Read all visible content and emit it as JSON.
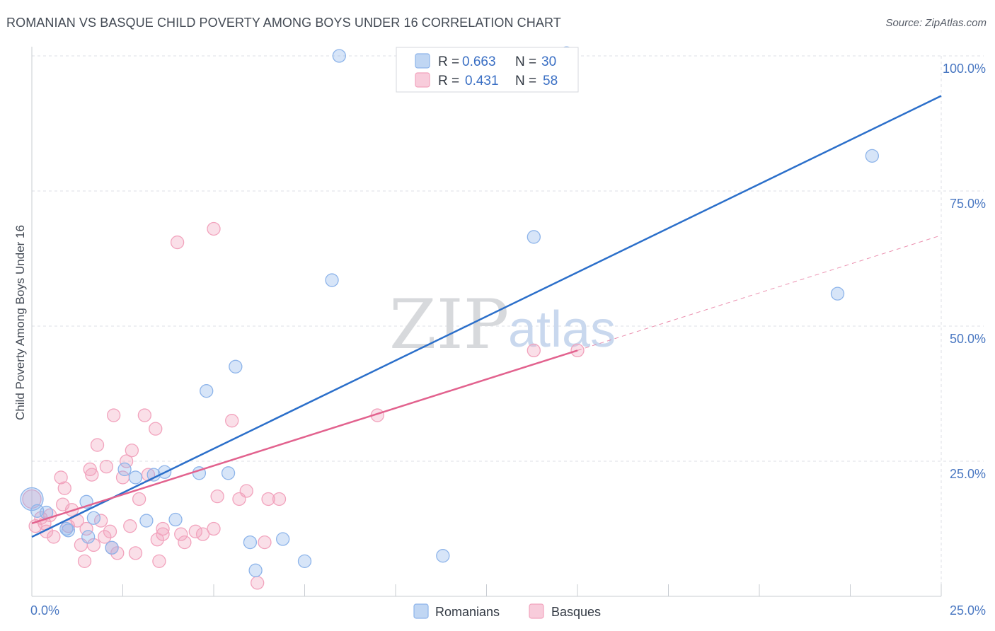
{
  "header": {
    "title": "ROMANIAN VS BASQUE CHILD POVERTY AMONG BOYS UNDER 16 CORRELATION CHART",
    "source": "Source: ZipAtlas.com"
  },
  "watermark": {
    "zip": "ZIP",
    "atlas": "atlas"
  },
  "colors": {
    "romanians": "#8db4ea",
    "romanians_line": "#2b6fca",
    "basques": "#f2a3bd",
    "basques_line": "#e2628e",
    "tick_label": "#4a78c2",
    "grid": "#dcdfe4"
  },
  "legend": {
    "r_label": "R =",
    "n_label": "N =",
    "romanians": {
      "r": "0.663",
      "n": "30"
    },
    "basques": {
      "r": "0.431",
      "n": "58"
    }
  },
  "chart_data": {
    "type": "scatter",
    "title": "ROMANIAN VS BASQUE CHILD POVERTY AMONG BOYS UNDER 16 CORRELATION CHART",
    "xlabel": "",
    "ylabel": "Child Poverty Among Boys Under 16",
    "xlim": [
      0,
      25
    ],
    "ylim": [
      0,
      100
    ],
    "x_tick_labels": [
      "0.0%",
      "25.0%"
    ],
    "y_ticks": [
      25,
      50,
      75,
      100
    ],
    "y_tick_labels": [
      "25.0%",
      "50.0%",
      "75.0%",
      "100.0%"
    ],
    "legend_position": "top-center",
    "series": [
      {
        "name": "Romanians",
        "r": 0.663,
        "n": 30,
        "trend": {
          "x": [
            0,
            25
          ],
          "y": [
            11.0,
            92.6
          ]
        },
        "points": [
          [
            0.0,
            18.0
          ],
          [
            0.4,
            15.5
          ],
          [
            0.95,
            12.5
          ],
          [
            1.5,
            17.5
          ],
          [
            1.7,
            14.5
          ],
          [
            1.55,
            11.0
          ],
          [
            2.2,
            9.0
          ],
          [
            2.55,
            23.5
          ],
          [
            2.85,
            22.0
          ],
          [
            3.15,
            14.0
          ],
          [
            3.35,
            22.5
          ],
          [
            3.65,
            23.0
          ],
          [
            3.95,
            14.2
          ],
          [
            4.6,
            22.8
          ],
          [
            4.8,
            38.0
          ],
          [
            5.4,
            22.8
          ],
          [
            5.6,
            42.5
          ],
          [
            6.0,
            10.0
          ],
          [
            6.15,
            4.8
          ],
          [
            6.9,
            10.6
          ],
          [
            7.5,
            6.5
          ],
          [
            8.25,
            58.5
          ],
          [
            8.45,
            100.0
          ],
          [
            11.3,
            7.5
          ],
          [
            13.8,
            66.5
          ],
          [
            14.7,
            100.5
          ],
          [
            22.15,
            56.0
          ],
          [
            23.1,
            81.5
          ],
          [
            1.0,
            12.2
          ],
          [
            0.15,
            15.8
          ]
        ]
      },
      {
        "name": "Basques",
        "r": 0.431,
        "n": 58,
        "trend": {
          "x": [
            0,
            15
          ],
          "y": [
            13.5,
            45.5
          ]
        },
        "trend_dashed": {
          "x": [
            15,
            25
          ],
          "y": [
            45.5,
            66.8
          ]
        },
        "points": [
          [
            0.0,
            18.0
          ],
          [
            0.1,
            13.0
          ],
          [
            0.25,
            14.5
          ],
          [
            0.35,
            13.5
          ],
          [
            0.4,
            12.0
          ],
          [
            0.5,
            15.0
          ],
          [
            0.6,
            11.0
          ],
          [
            0.8,
            22.0
          ],
          [
            0.85,
            17.0
          ],
          [
            0.9,
            20.0
          ],
          [
            1.0,
            13.0
          ],
          [
            1.1,
            16.0
          ],
          [
            1.25,
            14.0
          ],
          [
            1.35,
            9.5
          ],
          [
            1.45,
            6.5
          ],
          [
            1.5,
            12.5
          ],
          [
            1.6,
            23.5
          ],
          [
            1.65,
            22.5
          ],
          [
            1.7,
            9.5
          ],
          [
            1.8,
            28.0
          ],
          [
            1.9,
            14.0
          ],
          [
            2.0,
            11.0
          ],
          [
            2.05,
            24.0
          ],
          [
            2.15,
            12.0
          ],
          [
            2.2,
            9.0
          ],
          [
            2.25,
            33.5
          ],
          [
            2.35,
            8.0
          ],
          [
            2.5,
            22.0
          ],
          [
            2.6,
            25.0
          ],
          [
            2.7,
            13.0
          ],
          [
            2.75,
            27.0
          ],
          [
            2.85,
            8.0
          ],
          [
            2.95,
            18.0
          ],
          [
            3.1,
            33.5
          ],
          [
            3.2,
            22.5
          ],
          [
            3.4,
            31.0
          ],
          [
            3.45,
            10.5
          ],
          [
            3.5,
            6.5
          ],
          [
            3.6,
            11.5
          ],
          [
            3.6,
            12.5
          ],
          [
            4.0,
            65.5
          ],
          [
            4.1,
            11.5
          ],
          [
            4.2,
            10.0
          ],
          [
            4.5,
            12.0
          ],
          [
            4.7,
            11.5
          ],
          [
            5.0,
            68.0
          ],
          [
            5.0,
            12.5
          ],
          [
            5.1,
            18.5
          ],
          [
            5.5,
            32.5
          ],
          [
            5.7,
            18.0
          ],
          [
            5.9,
            19.5
          ],
          [
            6.2,
            2.5
          ],
          [
            6.4,
            10.0
          ],
          [
            6.5,
            18.0
          ],
          [
            6.8,
            18.0
          ],
          [
            9.5,
            33.5
          ],
          [
            13.8,
            45.5
          ],
          [
            15.0,
            45.5
          ]
        ]
      }
    ]
  },
  "bottom_legend": {
    "romanians": "Romanians",
    "basques": "Basques"
  }
}
